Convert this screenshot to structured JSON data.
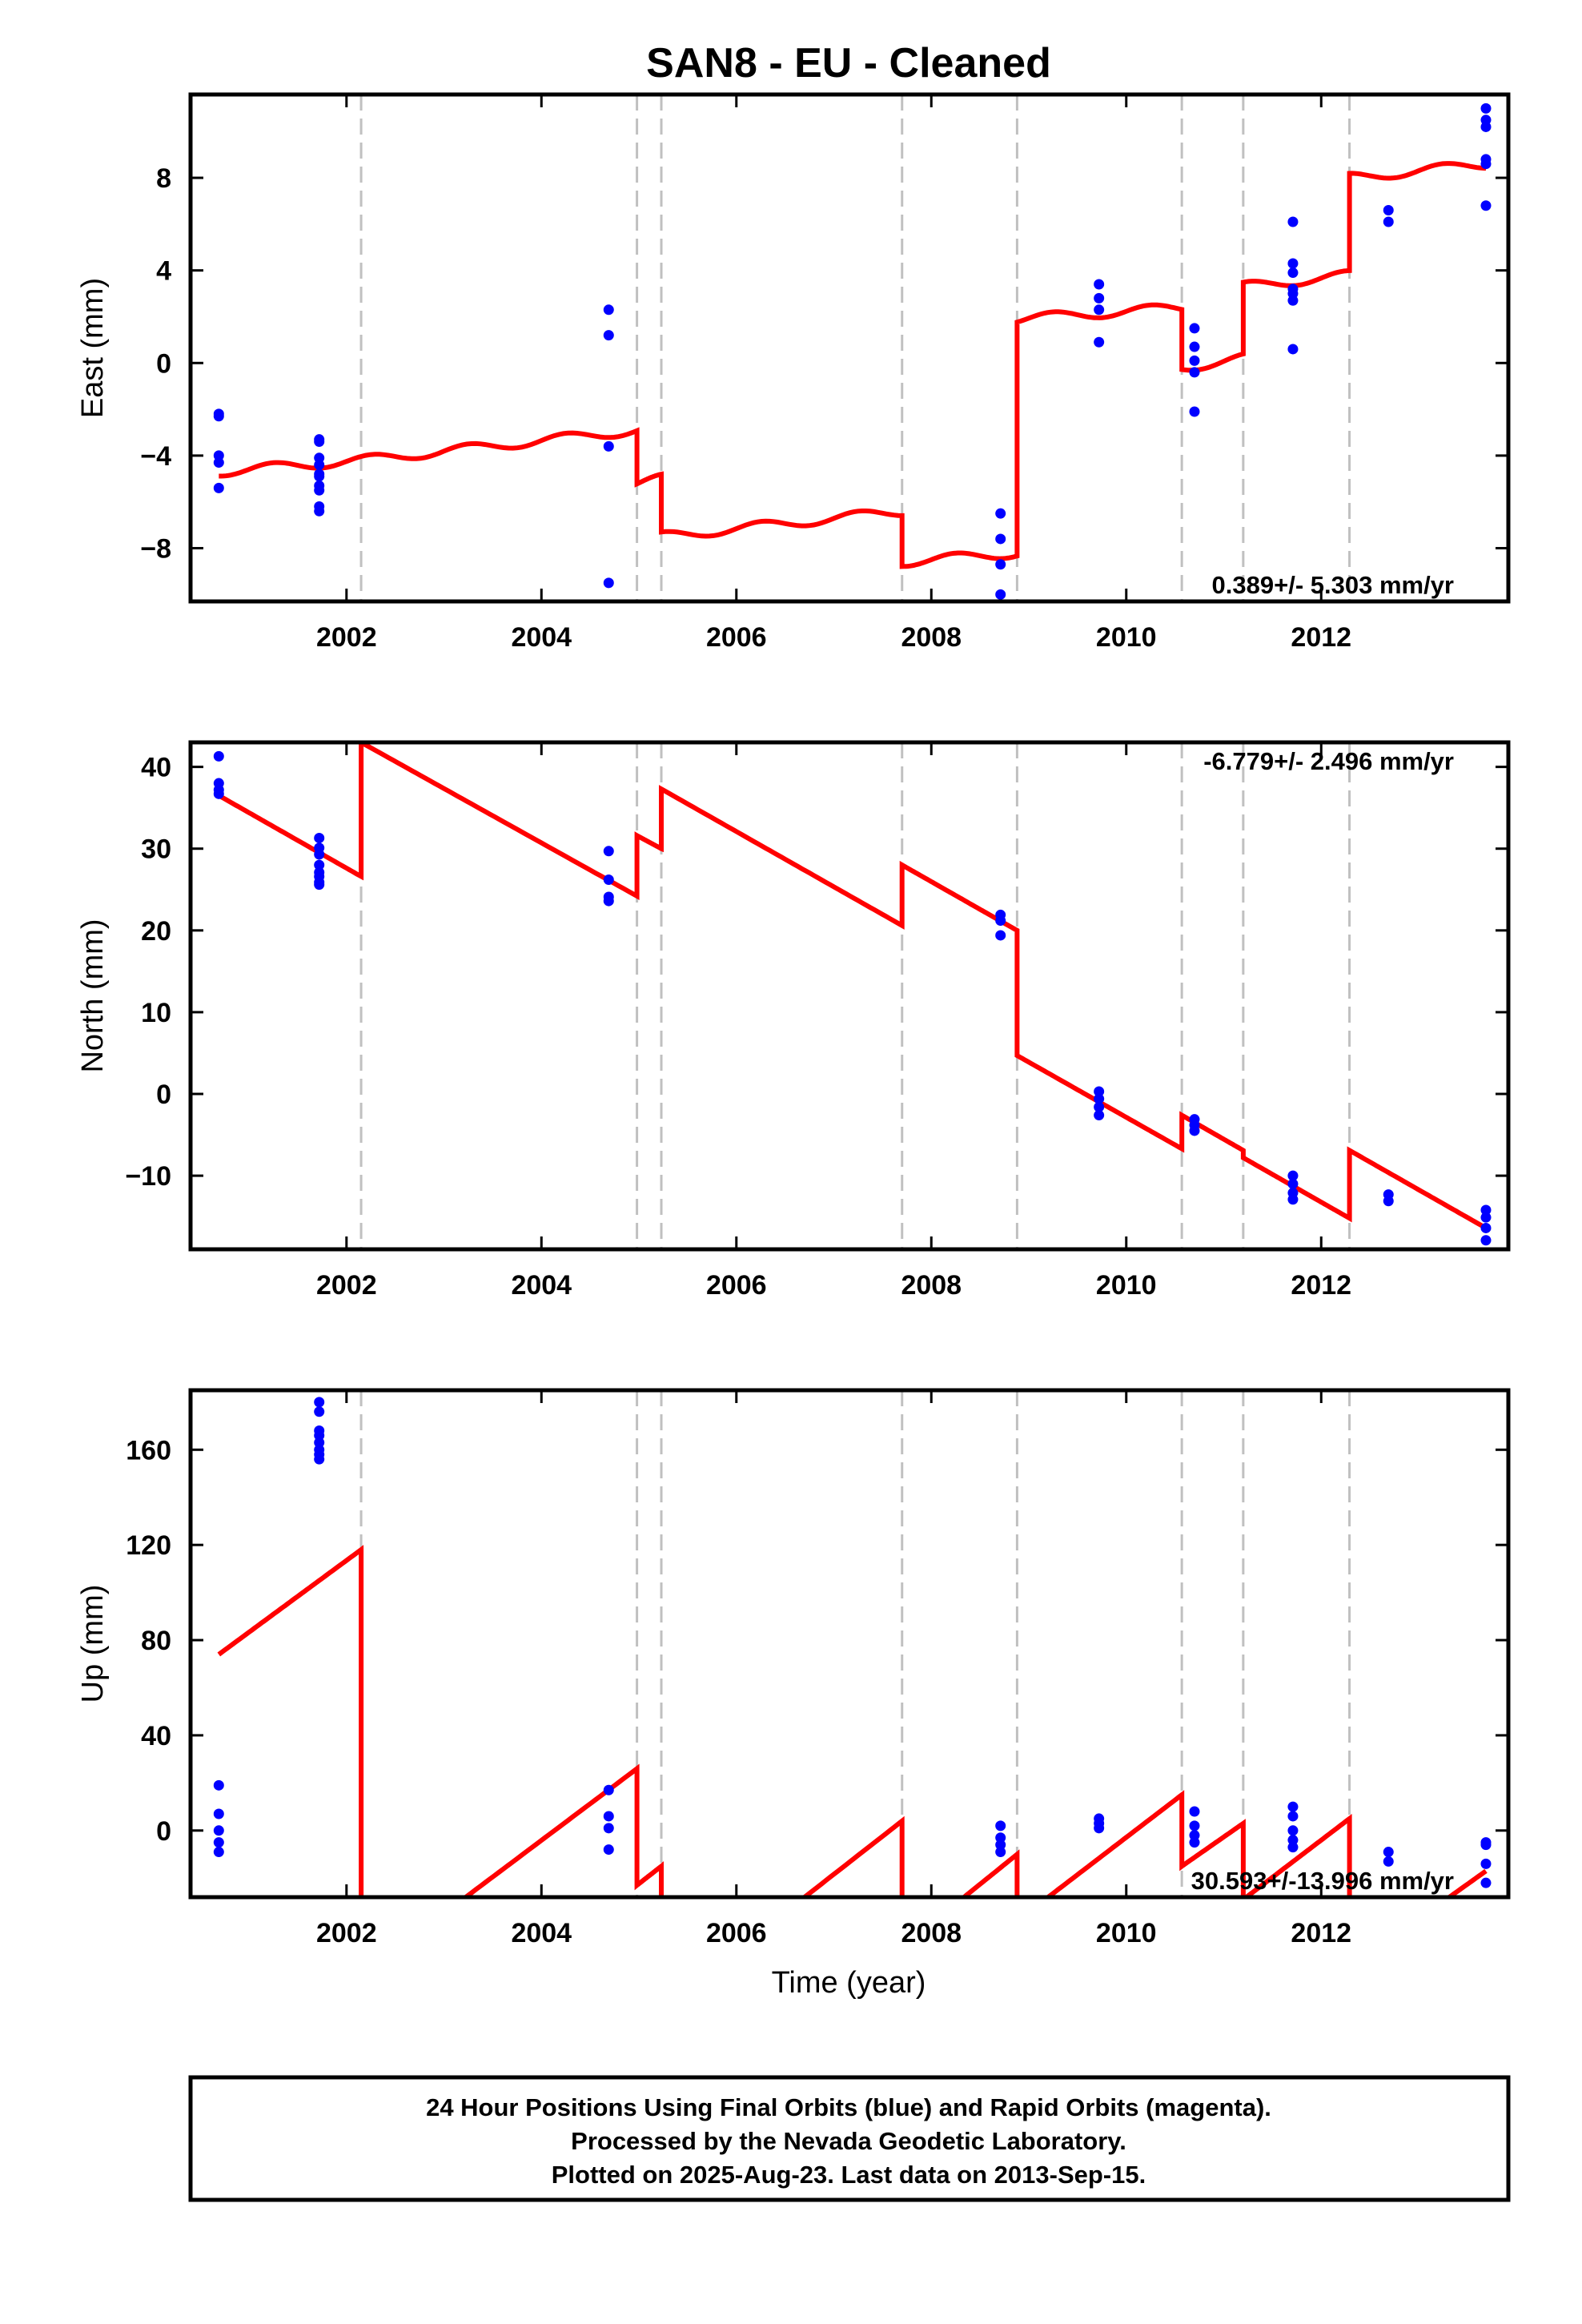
{
  "title": "SAN8  - EU - Cleaned",
  "xlabel": "Time (year)",
  "footer": [
    "24 Hour Positions Using Final Orbits (blue) and Rapid Orbits (magenta).",
    "Processed by the Nevada Geodetic Laboratory.",
    "Plotted on 2025-Aug-23. Last data on 2013-Sep-15."
  ],
  "colors": {
    "points": "#0000ff",
    "model": "#ff0000",
    "steps": "#c0c0c0",
    "frame": "#000000"
  },
  "chart_data": [
    {
      "type": "scatter",
      "panel": "east",
      "ylabel": "East (mm)",
      "rate_label": "0.389+/- 5.303 mm/yr",
      "rate_position": "bottom-right",
      "xlim": [
        2000.4,
        2013.92
      ],
      "ylim": [
        -10.3,
        11.6
      ],
      "xticks": [
        2002,
        2004,
        2006,
        2008,
        2010,
        2012
      ],
      "yticks": [
        -8,
        -4,
        0,
        4,
        8
      ],
      "step_epochs": [
        2002.15,
        2004.98,
        2005.23,
        2007.7,
        2008.88,
        2010.57,
        2011.2,
        2012.29
      ],
      "series": [
        {
          "kind": "points",
          "x": [
            2000.69,
            2000.69,
            2000.69,
            2000.69,
            2000.69,
            2001.72,
            2001.72,
            2001.72,
            2001.72,
            2001.72,
            2001.72,
            2001.72,
            2001.72,
            2001.72,
            2001.72,
            2004.69,
            2004.69,
            2004.69,
            2004.69,
            2008.71,
            2008.71,
            2008.71,
            2008.71,
            2009.72,
            2009.72,
            2009.72,
            2009.72,
            2010.7,
            2010.7,
            2010.7,
            2010.7,
            2010.7,
            2011.71,
            2011.71,
            2011.71,
            2011.71,
            2011.71,
            2011.71,
            2011.71,
            2012.69,
            2012.69,
            2013.69,
            2013.69,
            2013.69,
            2013.69,
            2013.69,
            2013.69
          ],
          "y": [
            -2.2,
            -2.3,
            -4.0,
            -4.3,
            -5.4,
            -3.3,
            -3.4,
            -4.1,
            -4.4,
            -4.8,
            -4.9,
            -5.3,
            -5.5,
            -6.2,
            -6.4,
            2.3,
            1.2,
            -3.6,
            -9.5,
            -6.5,
            -7.6,
            -8.7,
            -10.0,
            3.4,
            2.8,
            2.3,
            0.9,
            1.5,
            0.7,
            0.1,
            -0.4,
            -2.1,
            6.1,
            4.3,
            3.9,
            3.2,
            3.0,
            2.7,
            0.6,
            6.6,
            6.1,
            11.0,
            10.5,
            10.2,
            8.8,
            8.6,
            6.8
          ]
        },
        {
          "kind": "model",
          "segments": [
            {
              "x0": 2000.69,
              "x1": 2002.15,
              "y0": -4.7,
              "y1": -4.2
            },
            {
              "x0": 2002.15,
              "x1": 2004.98,
              "y0": -4.2,
              "y1": -2.9
            },
            {
              "x0": 2004.98,
              "x1": 2005.23,
              "y0": -5.2,
              "y1": -5.0
            },
            {
              "x0": 2005.23,
              "x1": 2007.7,
              "y0": -7.5,
              "y1": -6.4
            },
            {
              "x0": 2007.7,
              "x1": 2008.88,
              "y0": -8.6,
              "y1": -8.2
            },
            {
              "x0": 2008.88,
              "x1": 2010.57,
              "y0": 1.9,
              "y1": 2.4
            },
            {
              "x0": 2010.57,
              "x1": 2011.2,
              "y0": -0.2,
              "y1": 0.2
            },
            {
              "x0": 2011.2,
              "x1": 2012.29,
              "y0": 3.3,
              "y1": 3.8
            },
            {
              "x0": 2012.29,
              "x1": 2013.69,
              "y0": 8.0,
              "y1": 8.6
            }
          ],
          "seasonal_amplitude": 0.2
        }
      ]
    },
    {
      "type": "scatter",
      "panel": "north",
      "ylabel": "North (mm)",
      "rate_label": "-6.779+/- 2.496 mm/yr",
      "rate_position": "top-right",
      "xlim": [
        2000.4,
        2013.92
      ],
      "ylim": [
        -19,
        43
      ],
      "xticks": [
        2002,
        2004,
        2006,
        2008,
        2010,
        2012
      ],
      "yticks": [
        -10,
        0,
        10,
        20,
        30,
        40
      ],
      "step_epochs": [
        2002.15,
        2004.98,
        2005.23,
        2007.7,
        2008.88,
        2010.57,
        2011.2,
        2012.29
      ],
      "series": [
        {
          "kind": "points",
          "x": [
            2000.69,
            2000.69,
            2000.69,
            2000.69,
            2001.72,
            2001.72,
            2001.72,
            2001.72,
            2001.72,
            2001.72,
            2001.72,
            2001.72,
            2004.69,
            2004.69,
            2004.69,
            2004.69,
            2008.71,
            2008.71,
            2008.71,
            2009.72,
            2009.72,
            2009.72,
            2009.72,
            2010.7,
            2010.7,
            2010.7,
            2011.71,
            2011.71,
            2011.71,
            2011.71,
            2012.69,
            2012.69,
            2013.69,
            2013.69,
            2013.69,
            2013.69
          ],
          "y": [
            41.3,
            38.0,
            37.2,
            36.7,
            31.3,
            30.1,
            29.3,
            28.0,
            27.1,
            26.6,
            25.9,
            25.6,
            29.7,
            26.2,
            24.1,
            23.6,
            21.9,
            21.2,
            19.4,
            0.3,
            -0.6,
            -1.6,
            -2.6,
            -3.1,
            -3.8,
            -4.5,
            -10.0,
            -11.0,
            -12.1,
            -12.9,
            -12.3,
            -13.1,
            -14.2,
            -15.1,
            -16.4,
            -17.9
          ]
        },
        {
          "kind": "model",
          "segments": [
            {
              "x0": 2000.69,
              "x1": 2002.15,
              "y0": 36.5,
              "y1": 26.6
            },
            {
              "x0": 2002.15,
              "x1": 2004.98,
              "y0": 43.0,
              "y1": 24.2
            },
            {
              "x0": 2004.98,
              "x1": 2005.23,
              "y0": 31.6,
              "y1": 30.0
            },
            {
              "x0": 2005.23,
              "x1": 2007.7,
              "y0": 37.3,
              "y1": 20.6
            },
            {
              "x0": 2007.7,
              "x1": 2008.88,
              "y0": 28.0,
              "y1": 20.0
            },
            {
              "x0": 2008.88,
              "x1": 2010.57,
              "y0": 4.7,
              "y1": -6.7
            },
            {
              "x0": 2010.57,
              "x1": 2011.2,
              "y0": -2.6,
              "y1": -6.9
            },
            {
              "x0": 2011.2,
              "x1": 2012.29,
              "y0": -7.8,
              "y1": -15.2
            },
            {
              "x0": 2012.29,
              "x1": 2013.69,
              "y0": -6.9,
              "y1": -16.4
            }
          ]
        }
      ]
    },
    {
      "type": "scatter",
      "panel": "up",
      "ylabel": "Up (mm)",
      "rate_label": "30.593+/-13.996 mm/yr",
      "rate_position": "bottom-right",
      "xlim": [
        2000.4,
        2013.92
      ],
      "ylim": [
        -28,
        185
      ],
      "xticks": [
        2002,
        2004,
        2006,
        2008,
        2010,
        2012
      ],
      "yticks": [
        0,
        40,
        80,
        120,
        160
      ],
      "step_epochs": [
        2002.15,
        2004.98,
        2005.23,
        2007.7,
        2008.88,
        2010.57,
        2011.2,
        2012.29
      ],
      "series": [
        {
          "kind": "points",
          "x": [
            2000.69,
            2000.69,
            2000.69,
            2000.69,
            2000.69,
            2001.72,
            2001.72,
            2001.72,
            2001.72,
            2001.72,
            2001.72,
            2001.72,
            2001.72,
            2004.69,
            2004.69,
            2004.69,
            2004.69,
            2008.71,
            2008.71,
            2008.71,
            2008.71,
            2009.72,
            2009.72,
            2009.72,
            2010.7,
            2010.7,
            2010.7,
            2010.7,
            2011.71,
            2011.71,
            2011.71,
            2011.71,
            2011.71,
            2012.69,
            2012.69,
            2013.69,
            2013.69,
            2013.69,
            2013.69
          ],
          "y": [
            19,
            7,
            0,
            -5,
            -9,
            180,
            176,
            168,
            166,
            163,
            160,
            158,
            156,
            17,
            6,
            1,
            -8,
            2,
            -3,
            -6,
            -9,
            5,
            3,
            1,
            8,
            2,
            -2,
            -5,
            10,
            6,
            0,
            -4,
            -7,
            -9,
            -13,
            -5,
            -6,
            -14,
            -22
          ]
        },
        {
          "kind": "model",
          "segments": [
            {
              "x0": 2000.69,
              "x1": 2002.15,
              "y0": 74,
              "y1": 118
            },
            {
              "x0": 2002.15,
              "x1": 2004.98,
              "y0": -61,
              "y1": 26
            },
            {
              "x0": 2004.98,
              "x1": 2005.23,
              "y0": -23,
              "y1": -15
            },
            {
              "x0": 2005.23,
              "x1": 2007.7,
              "y0": -75,
              "y1": 4
            },
            {
              "x0": 2007.7,
              "x1": 2008.88,
              "y0": -49,
              "y1": -10
            },
            {
              "x0": 2008.88,
              "x1": 2010.57,
              "y0": -38,
              "y1": 15
            },
            {
              "x0": 2010.57,
              "x1": 2011.2,
              "y0": -15,
              "y1": 3
            },
            {
              "x0": 2011.2,
              "x1": 2012.29,
              "y0": -29,
              "y1": 5
            },
            {
              "x0": 2012.29,
              "x1": 2013.69,
              "y0": -58,
              "y1": -17
            }
          ]
        }
      ]
    }
  ]
}
